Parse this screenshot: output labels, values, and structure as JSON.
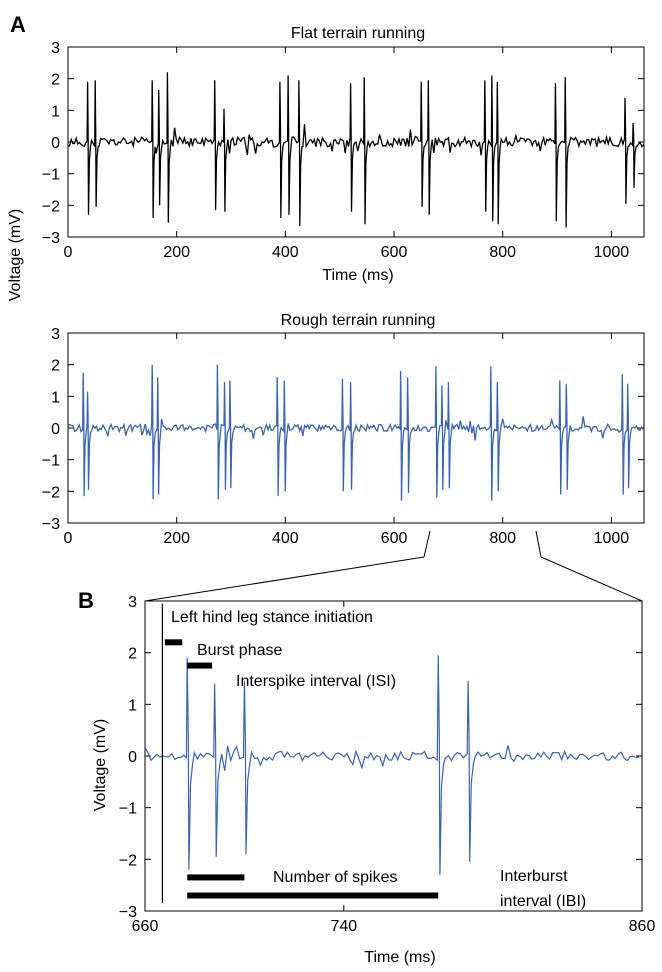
{
  "panels": {
    "a_letter": "A",
    "b_letter": "B"
  },
  "chart_data": [
    {
      "type": "line",
      "title": "Flat terrain running",
      "xlabel": "Time (ms)",
      "ylabel": "Voltage (mV)",
      "xlim": [
        0,
        1060
      ],
      "ylim": [
        -3,
        3
      ],
      "xticks": [
        0,
        200,
        400,
        600,
        800,
        1000
      ],
      "yticks": [
        -3,
        -2,
        -1,
        0,
        1,
        2,
        3
      ],
      "series": [
        {
          "color": "#000000",
          "bursts": [
            {
              "spikes": [
                [
                  36,
                  1.9,
                  -2.3
                ],
                [
                  50,
                  1.95,
                  -2.05
                ]
              ]
            },
            {
              "spikes": [
                [
                  155,
                  1.95,
                  -2.4
                ],
                [
                  167,
                  1.65,
                  -2.0
                ],
                [
                  183,
                  2.2,
                  -2.55
                ]
              ]
            },
            {
              "spikes": [
                [
                  270,
                  1.95,
                  -2.15
                ],
                [
                  287,
                  1.05,
                  -2.2
                ]
              ]
            },
            {
              "spikes": [
                [
                  390,
                  1.9,
                  -2.4
                ],
                [
                  405,
                  2.1,
                  -2.3
                ],
                [
                  425,
                  1.95,
                  -2.65
                ]
              ]
            },
            {
              "spikes": [
                [
                  520,
                  1.85,
                  -2.2
                ],
                [
                  545,
                  2.05,
                  -2.6
                ]
              ]
            },
            {
              "spikes": [
                [
                  650,
                  1.9,
                  -2.05
                ],
                [
                  663,
                  1.95,
                  -2.3
                ]
              ]
            },
            {
              "spikes": [
                [
                  767,
                  1.95,
                  -2.2
                ],
                [
                  780,
                  2.1,
                  -2.5
                ],
                [
                  790,
                  1.9,
                  -2.6
                ]
              ]
            },
            {
              "spikes": [
                [
                  897,
                  1.85,
                  -2.5
                ],
                [
                  915,
                  2.05,
                  -2.7
                ]
              ]
            },
            {
              "spikes": [
                [
                  1025,
                  1.4,
                  -1.95
                ],
                [
                  1040,
                  0.6,
                  -1.45
                ]
              ]
            }
          ]
        }
      ]
    },
    {
      "type": "line",
      "title": "Rough terrain running",
      "xlabel": "",
      "ylabel": "Voltage (mV)",
      "xlim": [
        0,
        1060
      ],
      "ylim": [
        -3,
        3
      ],
      "xticks": [
        0,
        200,
        400,
        600,
        800,
        1000
      ],
      "yticks": [
        -3,
        -2,
        -1,
        0,
        1,
        2,
        3
      ],
      "series": [
        {
          "color": "#3a63b0",
          "bursts": [
            {
              "spikes": [
                [
                  28,
                  1.75,
                  -2.15
                ],
                [
                  36,
                  1.15,
                  -1.95
                ]
              ]
            },
            {
              "spikes": [
                [
                  155,
                  2.0,
                  -2.25
                ],
                [
                  165,
                  1.6,
                  -2.1
                ]
              ]
            },
            {
              "spikes": [
                [
                  275,
                  2.0,
                  -2.25
                ],
                [
                  288,
                  1.45,
                  -1.95
                ],
                [
                  298,
                  1.5,
                  -1.9
                ]
              ]
            },
            {
              "spikes": [
                [
                  385,
                  1.6,
                  -2.15
                ],
                [
                  398,
                  1.5,
                  -2.0
                ]
              ]
            },
            {
              "spikes": [
                [
                  505,
                  1.55,
                  -2.0
                ],
                [
                  520,
                  1.45,
                  -1.95
                ]
              ]
            },
            {
              "spikes": [
                [
                  612,
                  1.8,
                  -2.3
                ],
                [
                  625,
                  1.6,
                  -2.05
                ]
              ]
            },
            {
              "spikes": [
                [
                  677,
                  1.95,
                  -2.2
                ],
                [
                  688,
                  1.35,
                  -1.95
                ],
                [
                  700,
                  1.45,
                  -1.9
                ]
              ]
            },
            {
              "spikes": [
                [
                  778,
                  1.95,
                  -2.3
                ],
                [
                  790,
                  1.45,
                  -2.0
                ]
              ]
            },
            {
              "spikes": [
                [
                  905,
                  1.5,
                  -2.1
                ],
                [
                  917,
                  1.4,
                  -1.95
                ]
              ]
            },
            {
              "spikes": [
                [
                  1020,
                  1.7,
                  -2.1
                ],
                [
                  1030,
                  1.4,
                  -1.9
                ]
              ]
            }
          ]
        }
      ]
    },
    {
      "type": "line",
      "title": "",
      "xlabel": "Time (ms)",
      "ylabel": "Voltage (mV)",
      "xlim": [
        660,
        860
      ],
      "ylim": [
        -3,
        3
      ],
      "xticks": [
        660,
        740,
        860
      ],
      "yticks": [
        -3,
        -2,
        -1,
        0,
        1,
        2,
        3
      ],
      "series": [
        {
          "color": "#3a63b0",
          "bursts": [
            {
              "spikes": [
                [
                  677,
                  1.9,
                  -2.2
                ],
                [
                  688,
                  1.4,
                  -1.95
                ],
                [
                  700,
                  1.45,
                  -1.9
                ]
              ]
            },
            {
              "spikes": [
                [
                  778,
                  1.95,
                  -2.3
                ],
                [
                  790,
                  1.45,
                  -2.05
                ]
              ]
            }
          ]
        }
      ],
      "annotations": {
        "stance_line": {
          "x": 667,
          "label": "Left hind leg stance initiation"
        },
        "bars": [
          {
            "x0": 668,
            "x1": 675,
            "y": 2.2,
            "label": "Burst phase"
          },
          {
            "x0": 677,
            "x1": 687,
            "y": 1.75,
            "label": "Interspike interval (ISI)"
          },
          {
            "x0": 677,
            "x1": 700,
            "y": -2.35,
            "label": "Number of spikes"
          },
          {
            "x0": 677,
            "x1": 778,
            "y": -2.7,
            "label_line1": "Interburst",
            "label_line2": "interval (IBI)"
          }
        ]
      }
    }
  ]
}
